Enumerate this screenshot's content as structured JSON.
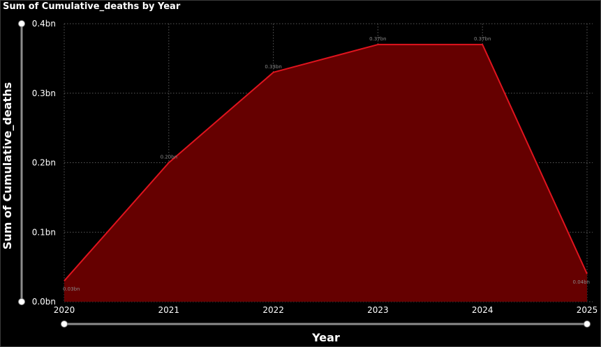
{
  "chart_data": {
    "type": "area",
    "title": "Sum of Cumulative_deaths by Year",
    "xlabel": "Year",
    "ylabel": "Sum of Cumulative_deaths",
    "categories": [
      "2020",
      "2021",
      "2022",
      "2023",
      "2024",
      "2025"
    ],
    "values": [
      0.03,
      0.2,
      0.33,
      0.37,
      0.37,
      0.04
    ],
    "value_unit": "bn",
    "data_labels": [
      "0.03bn",
      "0.20bn",
      "0.33bn",
      "0.37bn",
      "0.37bn",
      "0.04bn"
    ],
    "y_ticks": [
      "0.0bn",
      "0.1bn",
      "0.2bn",
      "0.3bn",
      "0.4bn"
    ],
    "ylim": [
      0,
      0.4
    ],
    "grid": true,
    "colors": {
      "line": "#e0141e",
      "fill": "#650000",
      "grid": "#5a5a5a",
      "background": "#000000"
    }
  }
}
